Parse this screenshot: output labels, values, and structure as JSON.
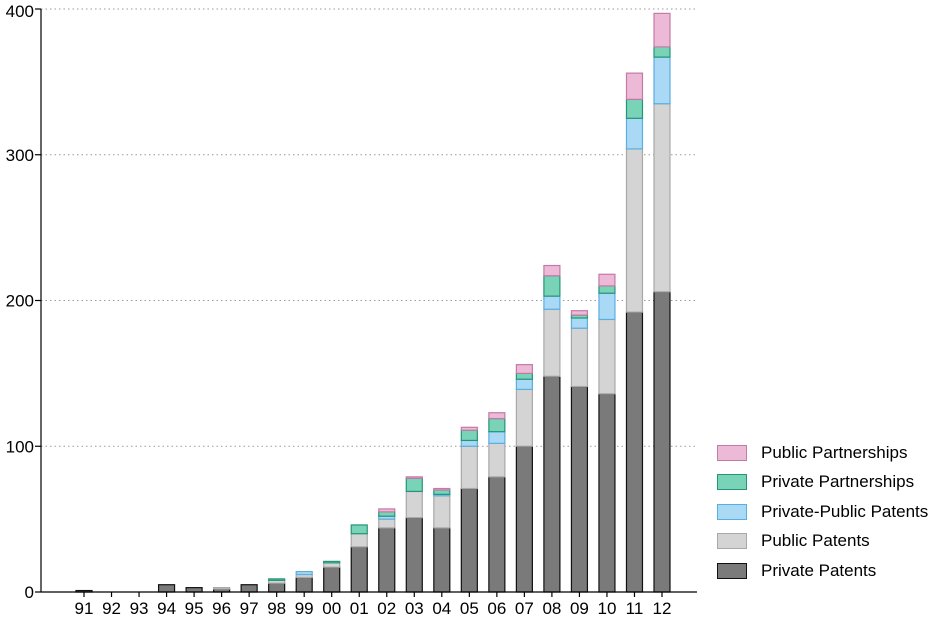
{
  "chart_data": {
    "type": "bar",
    "stacked": true,
    "categories": [
      "91",
      "92",
      "93",
      "94",
      "95",
      "96",
      "97",
      "98",
      "99",
      "00",
      "01",
      "02",
      "03",
      "04",
      "05",
      "06",
      "07",
      "08",
      "09",
      "10",
      "11",
      "12"
    ],
    "series": [
      {
        "name": "Private Patents",
        "fill": "#7a7a7a",
        "stroke": "#111111",
        "values": [
          1,
          0,
          0,
          5,
          3,
          2,
          5,
          6,
          10,
          17,
          31,
          44,
          51,
          44,
          71,
          79,
          100,
          148,
          141,
          136,
          192,
          206
        ]
      },
      {
        "name": "Public Patents",
        "fill": "#d4d4d4",
        "stroke": "#a8a8a8",
        "values": [
          0,
          0,
          0,
          0,
          0,
          1,
          0,
          2,
          2,
          3,
          9,
          6,
          18,
          22,
          29,
          23,
          39,
          46,
          40,
          51,
          112,
          129
        ]
      },
      {
        "name": "Private-Public Patents",
        "fill": "#a9d9f5",
        "stroke": "#5aaee0",
        "values": [
          0,
          0,
          0,
          0,
          0,
          0,
          0,
          0,
          2,
          0,
          0,
          2,
          0,
          1,
          4,
          8,
          7,
          9,
          7,
          18,
          21,
          32
        ]
      },
      {
        "name": "Private Partnerships",
        "fill": "#79d3b7",
        "stroke": "#24957a",
        "values": [
          0,
          0,
          0,
          0,
          0,
          0,
          0,
          1,
          0,
          1,
          6,
          3,
          9,
          3,
          7,
          9,
          4,
          14,
          2,
          5,
          13,
          7
        ]
      },
      {
        "name": "Public Partnerships",
        "fill": "#ecbad6",
        "stroke": "#c47aa6",
        "values": [
          0,
          0,
          0,
          0,
          0,
          0,
          0,
          0,
          0,
          0,
          0,
          2,
          1,
          1,
          2,
          4,
          6,
          7,
          3,
          8,
          18,
          23
        ]
      }
    ],
    "legend_order": [
      "Public Partnerships",
      "Private Partnerships",
      "Private-Public Patents",
      "Public Patents",
      "Private Patents"
    ],
    "y_ticks": [
      0,
      100,
      200,
      300,
      400
    ],
    "ylim": [
      0,
      400
    ],
    "grid": true,
    "legend_position": "right"
  }
}
